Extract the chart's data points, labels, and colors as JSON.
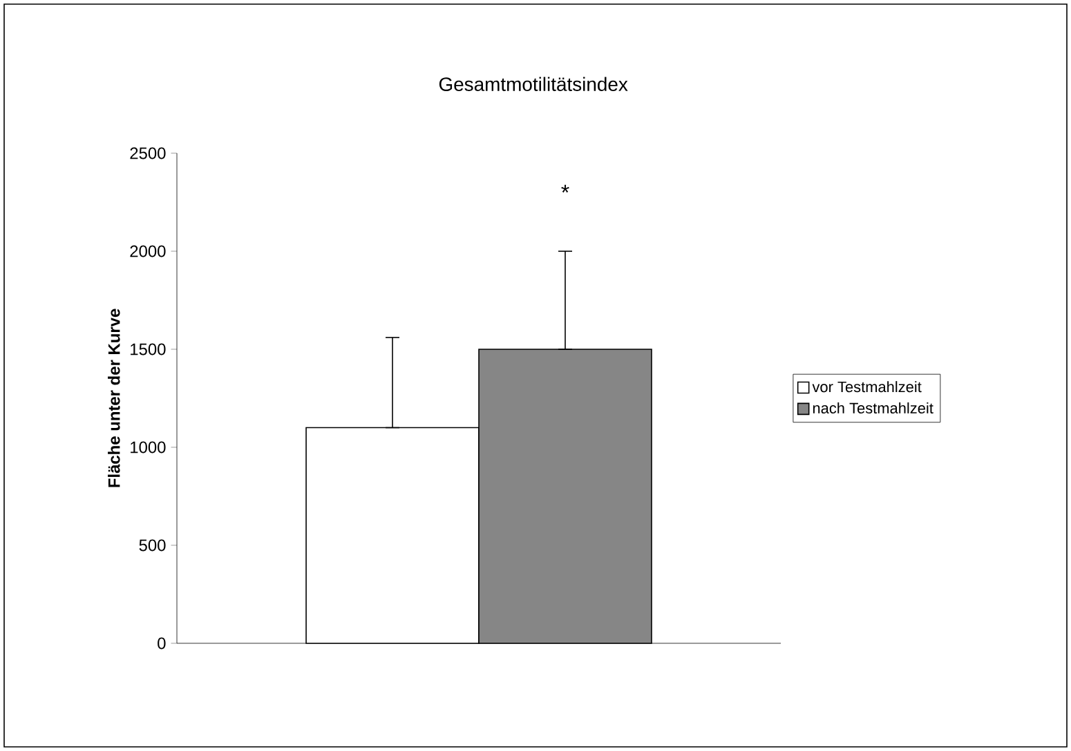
{
  "chart_data": {
    "type": "bar",
    "title": "Gesamtmotilitätsindex",
    "ylabel": "Fläche unter der Kurve",
    "categories": [
      null
    ],
    "series": [
      {
        "name": "vor Testmahlzeit",
        "color": "#ffffff",
        "values": [
          1100
        ],
        "errors": [
          [
            1100,
            1560
          ]
        ]
      },
      {
        "name": "nach Testmahlzeit",
        "color": "#868686",
        "values": [
          1500
        ],
        "errors": [
          [
            1500,
            2000
          ]
        ]
      }
    ],
    "ylim": [
      0,
      2500
    ],
    "yticks": [
      0,
      500,
      1000,
      1500,
      2000,
      2500
    ],
    "annotations": [
      "*"
    ],
    "legend": "right",
    "grid": false
  }
}
